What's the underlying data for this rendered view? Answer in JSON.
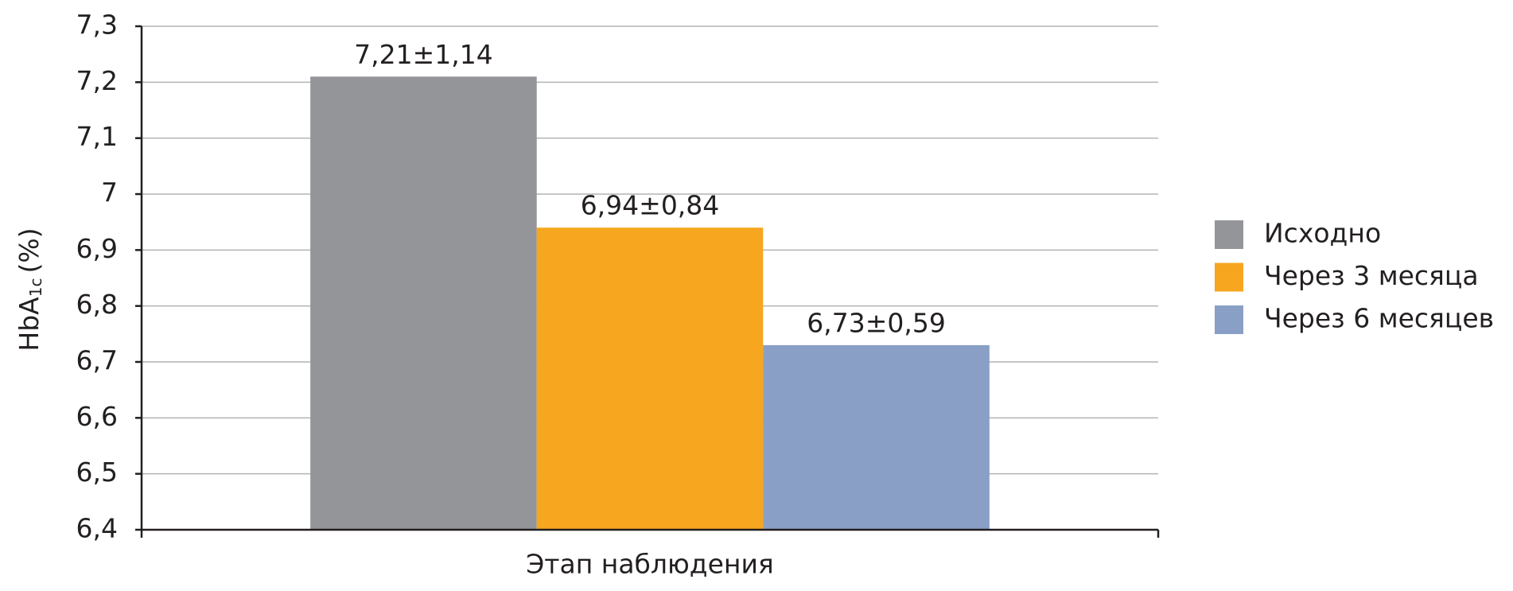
{
  "chart_data": {
    "type": "bar",
    "x_label": "Этап наблюдения",
    "y_label_parts": [
      "HbA",
      "1c",
      "(%)"
    ],
    "categories": [
      "Этап наблюдения"
    ],
    "series": [
      {
        "name": "Исходно",
        "color": "#939598",
        "values": [
          7.21
        ],
        "value_labels": [
          "7,21±1,14"
        ]
      },
      {
        "name": "Через 3 месяца",
        "color": "#f6a61f",
        "values": [
          6.94
        ],
        "value_labels": [
          "6,94±0,84"
        ]
      },
      {
        "name": "Через 6 месяцев",
        "color": "#8a9fc6",
        "values": [
          6.73
        ],
        "value_labels": [
          "6,73±0,59"
        ]
      }
    ],
    "ylim": [
      6.4,
      7.3
    ],
    "yticks": [
      {
        "value": 6.4,
        "label": "6,4"
      },
      {
        "value": 6.5,
        "label": "6,5"
      },
      {
        "value": 6.6,
        "label": "6,6"
      },
      {
        "value": 6.7,
        "label": "6,7"
      },
      {
        "value": 6.8,
        "label": "6,8"
      },
      {
        "value": 6.9,
        "label": "6,9"
      },
      7,
      {
        "value": 7.1,
        "label": "7,1"
      },
      {
        "value": 7.2,
        "label": "7,2"
      },
      {
        "value": 7.3,
        "label": "7,3"
      }
    ],
    "grid": true,
    "legend": "right"
  }
}
